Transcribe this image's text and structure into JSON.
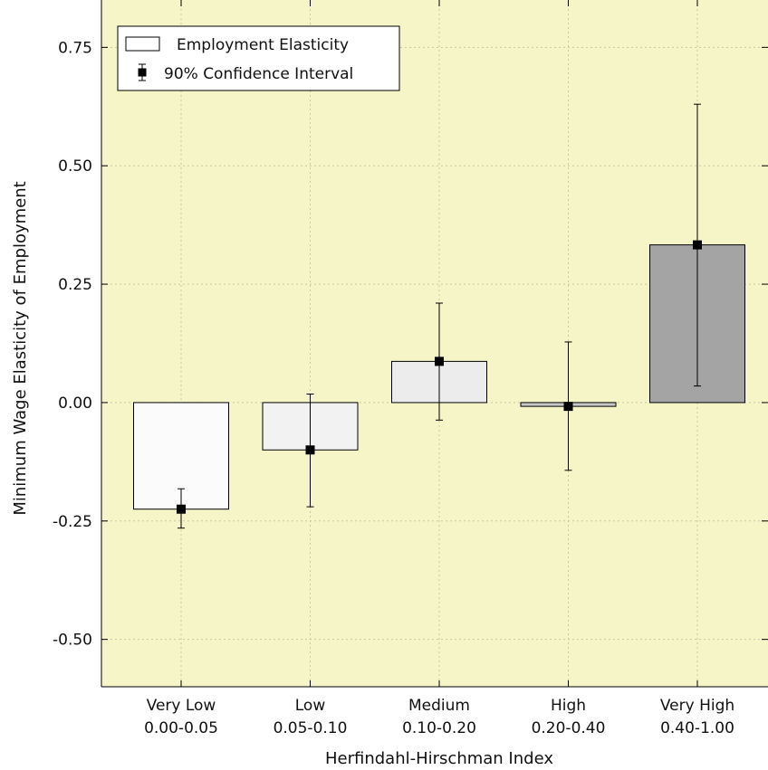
{
  "chart_data": {
    "type": "bar",
    "xlabel": "Herfindahl-Hirschman Index",
    "ylabel": "Minimum Wage Elasticity of Employment",
    "ylim": [
      -0.6,
      0.85
    ],
    "yticks": [
      0.75,
      0.5,
      0.25,
      0.0,
      -0.25,
      -0.5
    ],
    "ytick_labels": [
      "0.75",
      "0.50",
      "0.25",
      "0.00",
      "-0.25",
      "-0.50"
    ],
    "grid": true,
    "legend_position": "top-left",
    "background_color": "#f5f5c8",
    "categories": [
      {
        "name": "Very Low",
        "range": "0.00-0.05"
      },
      {
        "name": "Low",
        "range": "0.05-0.10"
      },
      {
        "name": "Medium",
        "range": "0.10-0.20"
      },
      {
        "name": "High",
        "range": "0.20-0.40"
      },
      {
        "name": "Very High",
        "range": "0.40-1.00"
      }
    ],
    "values": [
      -0.225,
      -0.1,
      0.087,
      -0.008,
      0.333
    ],
    "ci_low": [
      -0.265,
      -0.22,
      -0.037,
      -0.143,
      0.035
    ],
    "ci_high": [
      -0.182,
      0.018,
      0.21,
      0.128,
      0.63
    ],
    "bar_colors": [
      "#fbfbfb",
      "#f2f2f2",
      "#ececec",
      "#c8c8c8",
      "#a4a4a4"
    ],
    "series": [
      {
        "name": "Employment Elasticity"
      },
      {
        "name": "90% Confidence Interval"
      }
    ]
  }
}
